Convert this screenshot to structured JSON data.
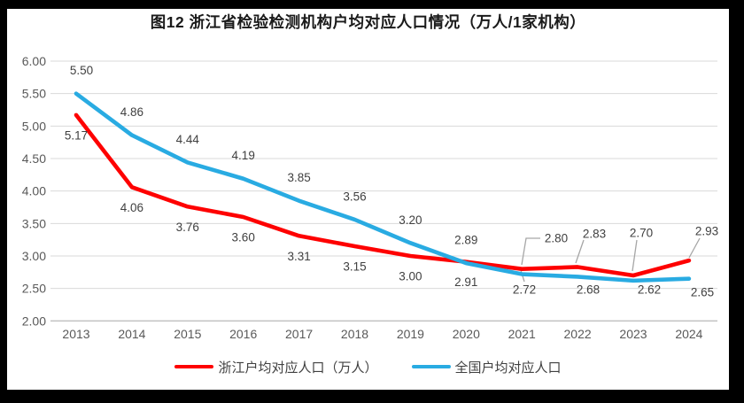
{
  "chart_data": {
    "type": "line",
    "title": "图12 浙江省检验检测机构户均对应人口情况（万人/1家机构）",
    "categories": [
      "2013",
      "2014",
      "2015",
      "2016",
      "2017",
      "2018",
      "2019",
      "2020",
      "2021",
      "2022",
      "2023",
      "2024"
    ],
    "series": [
      {
        "name": "浙江户均对应人口（万人）",
        "color": "#FE0000",
        "values": [
          5.17,
          4.06,
          3.76,
          3.6,
          3.31,
          3.15,
          3.0,
          2.91,
          2.8,
          2.83,
          2.7,
          2.93
        ]
      },
      {
        "name": "全国户均对应人口",
        "color": "#29ABE2",
        "values": [
          5.5,
          4.86,
          4.44,
          4.19,
          3.85,
          3.56,
          3.2,
          2.89,
          2.72,
          2.68,
          2.62,
          2.65
        ]
      }
    ],
    "xlabel": "",
    "ylabel": "",
    "ylim": [
      2.0,
      6.0
    ],
    "ytick_step": 0.5,
    "yticks": [
      "6.00",
      "5.50",
      "5.00",
      "4.50",
      "4.00",
      "3.50",
      "3.00",
      "2.50",
      "2.00"
    ],
    "grid": true,
    "legend_position": "bottom",
    "data_labels_shown": true
  },
  "colors": {
    "frame": "#000000",
    "background": "#FFFFFF",
    "gridline": "#D9D9D9",
    "axis_line": "#BFBFBF",
    "leader_line": "#A6A6A6",
    "axis_text": "#595959",
    "label_text": "#404040"
  }
}
